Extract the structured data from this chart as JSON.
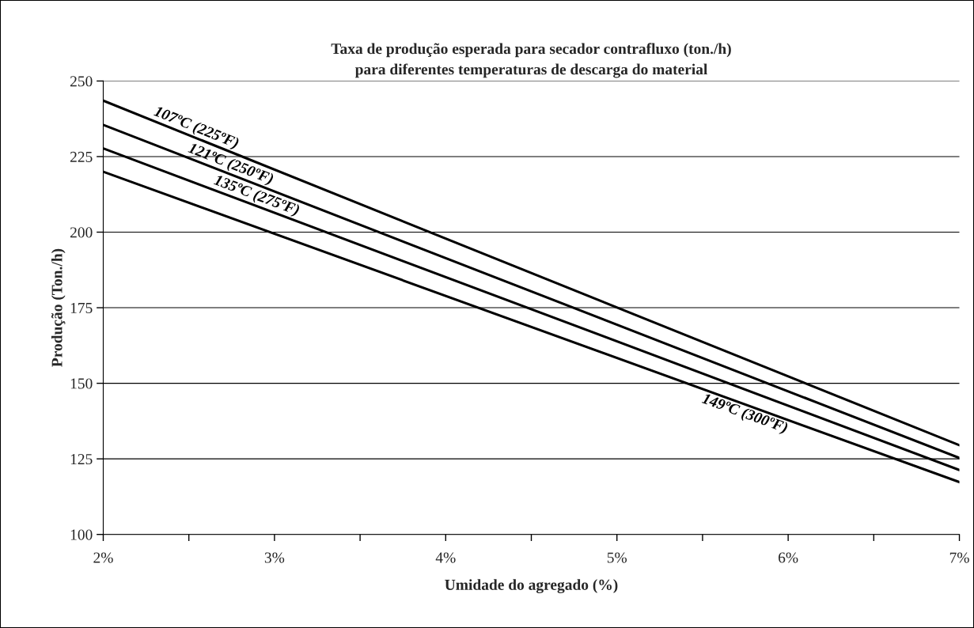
{
  "chart_data": {
    "type": "line",
    "title": "Taxa de produção esperada para secador contrafluxo (ton./h)\npara diferentes temperaturas de descarga do material",
    "xlabel": "Umidade do agregado (%)",
    "ylabel": "Produção (Ton./h)",
    "x": [
      2,
      7
    ],
    "series": [
      {
        "name": "107ºC (225ºF)",
        "color": "#000000",
        "values": [
          243.5,
          129.5
        ]
      },
      {
        "name": "121ºC (250ºF)",
        "color": "#000000",
        "values": [
          235.5,
          125.3
        ]
      },
      {
        "name": "135ºC (275ºF)",
        "color": "#000000",
        "values": [
          227.7,
          121.3
        ]
      },
      {
        "name": "149ºC (300ºF)",
        "color": "#000000",
        "values": [
          220,
          117.3
        ]
      }
    ],
    "xlim": [
      2,
      7
    ],
    "ylim": [
      100,
      250
    ],
    "xticks": [
      {
        "value": 2,
        "label": "2%"
      },
      {
        "value": 2.5,
        "label": null
      },
      {
        "value": 3,
        "label": "3%"
      },
      {
        "value": 3.5,
        "label": null
      },
      {
        "value": 4,
        "label": "4%"
      },
      {
        "value": 4.5,
        "label": null
      },
      {
        "value": 5,
        "label": "5%"
      },
      {
        "value": 5.5,
        "label": null
      },
      {
        "value": 6,
        "label": "6%"
      },
      {
        "value": 6.5,
        "label": null
      },
      {
        "value": 7,
        "label": "7%"
      }
    ],
    "yticks": [
      100,
      125,
      150,
      175,
      200,
      225,
      250
    ],
    "grid": "y",
    "legend": false,
    "marker": "none",
    "line_style": "solid"
  }
}
